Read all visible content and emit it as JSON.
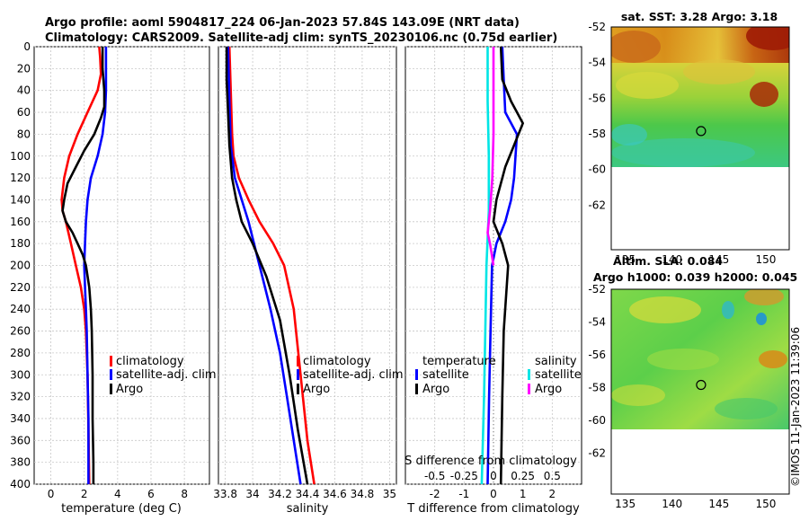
{
  "header": {
    "title_line1": "Argo profile: aoml 5904817_224 06-Jan-2023 57.84S 143.09E (NRT data)",
    "title_line2": "Climatology: CARS2009. Satellite-adj clim: synTS_20230106.nc (0.75d earlier)"
  },
  "colors": {
    "climatology": "#ff0000",
    "satellite": "#0000ff",
    "argo": "#000000",
    "sat_salinity": "#00e5e5",
    "magenta": "#ff00ff"
  },
  "chart_data": [
    {
      "type": "line",
      "name": "temperature-profile",
      "xlabel": "temperature (deg C)",
      "ylabel": "",
      "xlim": [
        -1,
        9.5
      ],
      "ylim": [
        400,
        0
      ],
      "xticks": [
        "0",
        "2",
        "4",
        "6",
        "8"
      ],
      "yticks": [
        "0",
        "20",
        "40",
        "60",
        "80",
        "100",
        "120",
        "140",
        "160",
        "180",
        "200",
        "220",
        "240",
        "260",
        "280",
        "300",
        "320",
        "340",
        "360",
        "380",
        "400"
      ],
      "legend": [
        "climatology",
        "satellite-adj. clim",
        "Argo"
      ],
      "series": [
        {
          "name": "climatology",
          "points": [
            [
              2.9,
              0
            ],
            [
              2.95,
              10
            ],
            [
              3.0,
              25
            ],
            [
              2.8,
              40
            ],
            [
              2.2,
              60
            ],
            [
              1.6,
              80
            ],
            [
              1.1,
              100
            ],
            [
              0.8,
              120
            ],
            [
              0.65,
              140
            ],
            [
              0.7,
              150
            ],
            [
              0.9,
              160
            ],
            [
              1.2,
              180
            ],
            [
              1.5,
              200
            ],
            [
              1.8,
              220
            ],
            [
              2.0,
              240
            ],
            [
              2.1,
              260
            ],
            [
              2.2,
              300
            ],
            [
              2.25,
              350
            ],
            [
              2.3,
              400
            ]
          ]
        },
        {
          "name": "satellite-adj. clim",
          "points": [
            [
              3.3,
              0
            ],
            [
              3.3,
              20
            ],
            [
              3.3,
              40
            ],
            [
              3.25,
              60
            ],
            [
              3.1,
              80
            ],
            [
              2.8,
              100
            ],
            [
              2.4,
              120
            ],
            [
              2.2,
              140
            ],
            [
              2.1,
              160
            ],
            [
              2.05,
              180
            ],
            [
              2.0,
              200
            ],
            [
              2.05,
              220
            ],
            [
              2.1,
              240
            ],
            [
              2.15,
              260
            ],
            [
              2.2,
              300
            ],
            [
              2.25,
              340
            ],
            [
              2.25,
              400
            ]
          ]
        },
        {
          "name": "Argo",
          "points": [
            [
              3.1,
              0
            ],
            [
              3.1,
              20
            ],
            [
              3.2,
              40
            ],
            [
              3.2,
              55
            ],
            [
              3.0,
              65
            ],
            [
              2.6,
              80
            ],
            [
              2.0,
              95
            ],
            [
              1.5,
              110
            ],
            [
              1.0,
              125
            ],
            [
              0.8,
              140
            ],
            [
              0.7,
              150
            ],
            [
              0.9,
              160
            ],
            [
              1.3,
              170
            ],
            [
              1.6,
              180
            ],
            [
              1.9,
              190
            ],
            [
              2.1,
              200
            ],
            [
              2.3,
              220
            ],
            [
              2.4,
              240
            ],
            [
              2.45,
              260
            ],
            [
              2.5,
              300
            ],
            [
              2.5,
              340
            ],
            [
              2.55,
              380
            ],
            [
              2.55,
              400
            ]
          ]
        }
      ]
    },
    {
      "type": "line",
      "name": "salinity-profile",
      "xlabel": "salinity",
      "xlim": [
        33.75,
        35.05
      ],
      "ylim": [
        400,
        0
      ],
      "xticks": [
        "33.8",
        "34",
        "34.2",
        "34.4",
        "34.6",
        "34.8",
        "35"
      ],
      "legend": [
        "climatology",
        "satellite-adj. clim",
        "Argo"
      ],
      "series": [
        {
          "name": "climatology",
          "points": [
            [
              33.83,
              0
            ],
            [
              33.84,
              40
            ],
            [
              33.85,
              80
            ],
            [
              33.86,
              100
            ],
            [
              33.9,
              120
            ],
            [
              33.97,
              140
            ],
            [
              34.05,
              160
            ],
            [
              34.15,
              180
            ],
            [
              34.23,
              200
            ],
            [
              34.3,
              240
            ],
            [
              34.35,
              300
            ],
            [
              34.4,
              360
            ],
            [
              34.45,
              400
            ]
          ]
        },
        {
          "name": "satellite-adj. clim",
          "points": [
            [
              33.82,
              0
            ],
            [
              33.83,
              50
            ],
            [
              33.84,
              90
            ],
            [
              33.87,
              120
            ],
            [
              33.92,
              140
            ],
            [
              33.97,
              160
            ],
            [
              34.05,
              200
            ],
            [
              34.13,
              240
            ],
            [
              34.2,
              280
            ],
            [
              34.25,
              320
            ],
            [
              34.3,
              360
            ],
            [
              34.35,
              400
            ]
          ]
        },
        {
          "name": "Argo",
          "points": [
            [
              33.81,
              0
            ],
            [
              33.81,
              30
            ],
            [
              33.82,
              60
            ],
            [
              33.83,
              90
            ],
            [
              33.85,
              120
            ],
            [
              33.88,
              140
            ],
            [
              33.92,
              160
            ],
            [
              34.0,
              180
            ],
            [
              34.1,
              210
            ],
            [
              34.2,
              250
            ],
            [
              34.27,
              300
            ],
            [
              34.33,
              350
            ],
            [
              34.4,
              400
            ]
          ]
        }
      ]
    },
    {
      "type": "line",
      "name": "difference-profile",
      "xlabel": "T difference from climatology",
      "top_label": "S difference from climatology",
      "xlim": [
        -3,
        3
      ],
      "top_xlim": [
        -0.75,
        0.75
      ],
      "ylim": [
        400,
        0
      ],
      "xticks": [
        "-2",
        "-1",
        "0",
        "1",
        "2"
      ],
      "top_xticks": [
        "-0.5",
        "-0.25",
        "0",
        "0.25",
        "0.5"
      ],
      "legend_left_title": "temperature",
      "legend_right_title": "salinity",
      "legend": [
        "satellite",
        "Argo",
        "satellite",
        "Argo"
      ],
      "series": [
        {
          "name": "T satellite",
          "points": [
            [
              0.3,
              0
            ],
            [
              0.35,
              30
            ],
            [
              0.4,
              60
            ],
            [
              0.8,
              80
            ],
            [
              0.75,
              100
            ],
            [
              0.7,
              120
            ],
            [
              0.6,
              140
            ],
            [
              0.4,
              160
            ],
            [
              0.1,
              180
            ],
            [
              -0.05,
              200
            ],
            [
              -0.1,
              260
            ],
            [
              -0.15,
              320
            ],
            [
              -0.2,
              400
            ]
          ]
        },
        {
          "name": "T Argo",
          "points": [
            [
              0.25,
              0
            ],
            [
              0.3,
              30
            ],
            [
              0.6,
              50
            ],
            [
              1.0,
              70
            ],
            [
              0.7,
              90
            ],
            [
              0.4,
              110
            ],
            [
              0.1,
              140
            ],
            [
              0.0,
              160
            ],
            [
              0.3,
              180
            ],
            [
              0.5,
              200
            ],
            [
              0.35,
              260
            ],
            [
              0.3,
              320
            ],
            [
              0.25,
              400
            ]
          ]
        },
        {
          "name": "S satellite",
          "points": [
            [
              -0.05,
              0
            ],
            [
              -0.05,
              50
            ],
            [
              -0.04,
              100
            ],
            [
              -0.04,
              150
            ],
            [
              -0.06,
              200
            ],
            [
              -0.07,
              260
            ],
            [
              -0.08,
              320
            ],
            [
              -0.1,
              400
            ]
          ]
        },
        {
          "name": "S Argo",
          "points": [
            [
              0.0,
              0
            ],
            [
              0.0,
              40
            ],
            [
              0.0,
              80
            ],
            [
              -0.01,
              120
            ],
            [
              -0.03,
              150
            ],
            [
              -0.05,
              170
            ],
            [
              -0.03,
              180
            ],
            [
              0.0,
              200
            ]
          ]
        }
      ]
    },
    {
      "type": "heatmap",
      "name": "sst-map",
      "title": "sat. SST: 3.28 Argo: 3.18",
      "xlim": [
        133.5,
        152.5
      ],
      "ylim": [
        -64.5,
        -52
      ],
      "xticks": [
        "135",
        "140",
        "145",
        "150"
      ],
      "yticks": [
        "-52",
        "-54",
        "-56",
        "-58",
        "-60",
        "-62"
      ],
      "marker": [
        143.09,
        -57.84
      ]
    },
    {
      "type": "heatmap",
      "name": "sla-map",
      "title1": "Altim. SLA: 0.084",
      "title2": "Argo h1000: 0.039 h2000: 0.045",
      "xlim": [
        133.5,
        152.5
      ],
      "ylim": [
        -64.5,
        -52
      ],
      "xticks": [
        "135",
        "140",
        "145",
        "150"
      ],
      "yticks": [
        "-52",
        "-54",
        "-56",
        "-58",
        "-60",
        "-62"
      ],
      "marker": [
        143.09,
        -57.84
      ]
    }
  ],
  "footer": {
    "credit": "©IMOS 11-Jan-2023 11:39:06"
  }
}
